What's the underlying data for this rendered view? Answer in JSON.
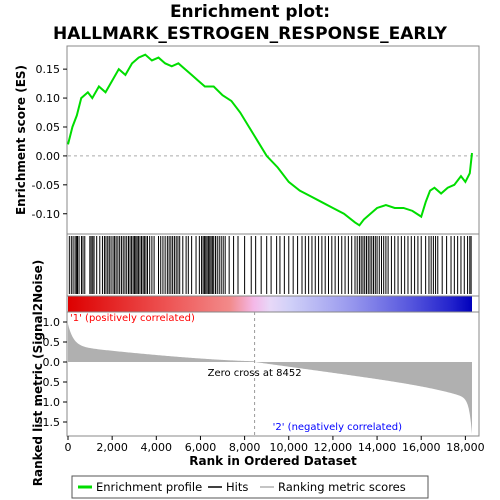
{
  "chart_data": {
    "type": "line",
    "title_line1": "Enrichment plot:",
    "title_line2": "HALLMARK_ESTROGEN_RESPONSE_EARLY",
    "es_ylabel": "Enrichment score (ES)",
    "rank_ylabel": "Ranked list metric (Signal2Noise)",
    "xlabel": "Rank in Ordered Dataset",
    "xlim": [
      0,
      18500
    ],
    "es_ylim": [
      -0.135,
      0.19
    ],
    "rank_ylim": [
      -1.85,
      1.25
    ],
    "x_ticks": [
      0,
      2000,
      4000,
      6000,
      8000,
      10000,
      12000,
      14000,
      16000,
      18000
    ],
    "x_tick_labels": [
      "0",
      "2,000",
      "4,000",
      "6,000",
      "8,000",
      "10,000",
      "12,000",
      "14,000",
      "16,000",
      "18,000"
    ],
    "es_ticks": [
      0.15,
      0.1,
      0.05,
      0.0,
      -0.05,
      -0.1
    ],
    "es_tick_labels": [
      "0.15",
      "0.10",
      "0.05",
      "0.00",
      "-0.05",
      "-0.10"
    ],
    "rank_ticks": [
      1.0,
      0.5,
      0.0,
      -0.5,
      -1.0,
      -1.5
    ],
    "rank_tick_labels": [
      "1.0",
      "0.5",
      "0.0",
      "-0.5",
      "-1.0",
      "-1.5"
    ],
    "zero_cross_x": 8452,
    "zero_cross_label": "Zero cross at 8452",
    "pos_label": "'1' (positively correlated)",
    "neg_label": "'2' (negatively correlated)",
    "colors": {
      "es_line": "#00dd00",
      "pos_label": "#ff0000",
      "neg_label": "#0000ff",
      "rank_fill": "#b0b0b0"
    },
    "legend": [
      {
        "label": "Enrichment profile",
        "color": "#00dd00"
      },
      {
        "label": "Hits",
        "color": "#000000"
      },
      {
        "label": "Ranking metric scores",
        "color": "#b0b0b0"
      }
    ],
    "es_profile": {
      "x": [
        0,
        200,
        400,
        600,
        900,
        1100,
        1400,
        1700,
        2000,
        2300,
        2600,
        2900,
        3200,
        3500,
        3800,
        4100,
        4400,
        4700,
        5000,
        5300,
        5600,
        5900,
        6200,
        6600,
        7000,
        7400,
        7800,
        8200,
        8600,
        9000,
        9500,
        10000,
        10500,
        11000,
        11500,
        12000,
        12500,
        13000,
        13200,
        13400,
        13700,
        14000,
        14400,
        14800,
        15200,
        15600,
        16000,
        16200,
        16400,
        16600,
        16900,
        17200,
        17500,
        17800,
        18000,
        18200,
        18300
      ],
      "y": [
        0.02,
        0.05,
        0.07,
        0.1,
        0.11,
        0.1,
        0.12,
        0.11,
        0.13,
        0.15,
        0.14,
        0.16,
        0.17,
        0.175,
        0.165,
        0.17,
        0.16,
        0.155,
        0.16,
        0.15,
        0.14,
        0.13,
        0.12,
        0.12,
        0.105,
        0.095,
        0.075,
        0.05,
        0.025,
        0.0,
        -0.02,
        -0.045,
        -0.06,
        -0.07,
        -0.08,
        -0.09,
        -0.1,
        -0.115,
        -0.12,
        -0.11,
        -0.1,
        -0.09,
        -0.085,
        -0.09,
        -0.09,
        -0.095,
        -0.105,
        -0.08,
        -0.06,
        -0.055,
        -0.065,
        -0.055,
        -0.05,
        -0.035,
        -0.045,
        -0.03,
        0.005
      ]
    },
    "hits": [
      60,
      150,
      230,
      320,
      380,
      430,
      500,
      610,
      680,
      760,
      990,
      1050,
      1120,
      1180,
      1300,
      1440,
      1560,
      1650,
      1720,
      1800,
      1870,
      1950,
      2040,
      2110,
      2180,
      2260,
      2340,
      2420,
      2500,
      2580,
      2660,
      2740,
      2810,
      2880,
      2950,
      3010,
      3070,
      3130,
      3190,
      3260,
      3330,
      3400,
      3460,
      3530,
      3600,
      3700,
      3800,
      3900,
      4100,
      4200,
      4300,
      4400,
      4500,
      4580,
      4660,
      4740,
      4820,
      4900,
      4980,
      5060,
      5200,
      5350,
      5450,
      5600,
      5800,
      5950,
      6050,
      6120,
      6180,
      6240,
      6300,
      6360,
      6420,
      6480,
      6540,
      6600,
      6680,
      6760,
      6850,
      6940,
      7030,
      7120,
      7300,
      7500,
      7700,
      8000,
      8300,
      8500,
      8750,
      9000,
      9200,
      9450,
      9600,
      9800,
      10000,
      10200,
      10400,
      10600,
      10750,
      10900,
      11050,
      11200,
      11350,
      11500,
      11650,
      11800,
      11950,
      12100,
      12250,
      12400,
      12550,
      12700,
      12850,
      13000,
      13100,
      13200,
      13280,
      13360,
      13440,
      13520,
      13600,
      13680,
      13760,
      13840,
      13920,
      14000,
      14100,
      14200,
      14300,
      14400,
      14500,
      14650,
      14800,
      14950,
      15100,
      15250,
      15400,
      15550,
      15700,
      15850,
      16000,
      16200,
      16350,
      16450,
      16550,
      16650,
      16750,
      16950,
      17150,
      17350,
      17500,
      17650,
      17800,
      17950,
      18100,
      18200,
      18260
    ]
  }
}
